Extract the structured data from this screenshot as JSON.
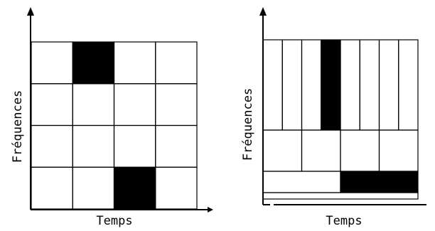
{
  "left_panel": {
    "ylabel": "Fréquences",
    "xlabel": "Temps",
    "grid_cols": 4,
    "grid_rows": 4,
    "filled_cells": [
      {
        "col": 1,
        "row": 0
      },
      {
        "col": 2,
        "row": 3
      }
    ]
  },
  "right_panel": {
    "ylabel": "Fréquences",
    "xlabel": "Temps",
    "tiles": [
      {
        "row_band": "top",
        "count": 8,
        "filled_index": 3
      },
      {
        "row_band": "middle",
        "count": 4,
        "filled_index": null
      },
      {
        "row_band": "bottom",
        "count": 2,
        "filled_index": 1
      },
      {
        "row_band": "base",
        "count": 1,
        "filled_index": null
      }
    ]
  },
  "colors": {
    "line": "#000000",
    "fill": "#000000",
    "background": "#ffffff"
  }
}
